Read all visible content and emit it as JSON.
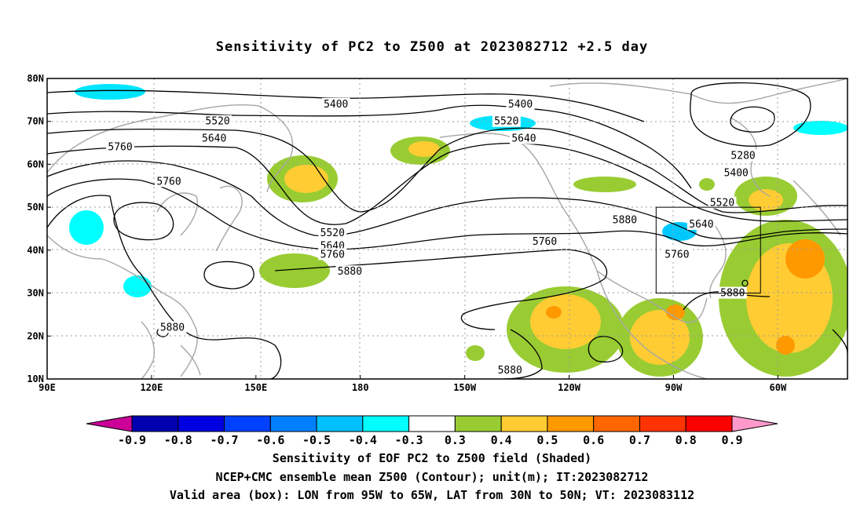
{
  "title": "Sensitivity of PC2 to Z500 at 2023082712 +2.5 day",
  "lat_labels": [
    "80N",
    "70N",
    "60N",
    "50N",
    "40N",
    "30N",
    "20N",
    "10N"
  ],
  "lon_labels": [
    "90E",
    "120E",
    "150E",
    "180",
    "150W",
    "120W",
    "90W",
    "60W"
  ],
  "contour_labels": [
    {
      "text": "5400",
      "lon": 173,
      "lat": 74
    },
    {
      "text": "5400",
      "lon": -134,
      "lat": 74
    },
    {
      "text": "5520",
      "lon": 139,
      "lat": 70
    },
    {
      "text": "5520",
      "lon": -138,
      "lat": 70
    },
    {
      "text": "5640",
      "lon": 138,
      "lat": 66
    },
    {
      "text": "5640",
      "lon": -133,
      "lat": 66
    },
    {
      "text": "5760",
      "lon": 111,
      "lat": 64
    },
    {
      "text": "5760",
      "lon": 125,
      "lat": 56
    },
    {
      "text": "5280",
      "lon": -70,
      "lat": 62
    },
    {
      "text": "5400",
      "lon": -72,
      "lat": 58
    },
    {
      "text": "5520",
      "lon": -76,
      "lat": 51
    },
    {
      "text": "5880",
      "lon": -104,
      "lat": 47
    },
    {
      "text": "5640",
      "lon": -82,
      "lat": 46
    },
    {
      "text": "5520",
      "lon": 172,
      "lat": 44
    },
    {
      "text": "5640",
      "lon": 172,
      "lat": 41
    },
    {
      "text": "5760",
      "lon": 172,
      "lat": 39
    },
    {
      "text": "5760",
      "lon": -127,
      "lat": 42
    },
    {
      "text": "5760",
      "lon": -89,
      "lat": 39
    },
    {
      "text": "5880",
      "lon": 177,
      "lat": 35
    },
    {
      "text": "5880",
      "lon": 126,
      "lat": 22
    },
    {
      "text": "5880",
      "lon": -73,
      "lat": 30
    },
    {
      "text": "5880",
      "lon": -137,
      "lat": 12
    }
  ],
  "colorbar": {
    "levels": [
      "-0.9",
      "-0.8",
      "-0.7",
      "-0.6",
      "-0.5",
      "-0.4",
      "-0.3",
      "0.3",
      "0.4",
      "0.5",
      "0.6",
      "0.7",
      "0.8",
      "0.9"
    ],
    "colors": [
      "#cc0099",
      "#0000b0",
      "#0000e0",
      "#0040ff",
      "#0080ff",
      "#00c0ff",
      "#00ffff",
      "#ffffff",
      "#99cc33",
      "#ffcc33",
      "#ff9900",
      "#ff6600",
      "#ff3300",
      "#ff0000",
      "#ff99cc"
    ]
  },
  "valid_box": {
    "lon_min": -95,
    "lon_max": -65,
    "lat_min": 30,
    "lat_max": 50
  },
  "captions": [
    "Sensitivity of EOF PC2 to Z500 field (Shaded)",
    "NCEP+CMC ensemble mean Z500 (Contour); unit(m); IT:2023082712",
    "Valid area (box): LON from 95W to 65W, LAT from 30N to 50N; VT: 2023083112"
  ]
}
